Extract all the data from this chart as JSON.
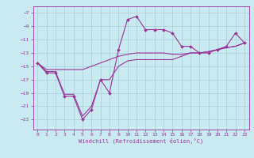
{
  "xlabel": "Windchill (Refroidissement éolien,°C)",
  "background_color": "#c8eaf0",
  "grid_color": "#aaccdd",
  "line_color": "#993399",
  "x_ticks": [
    0,
    1,
    2,
    3,
    4,
    5,
    6,
    7,
    8,
    9,
    10,
    11,
    12,
    13,
    14,
    15,
    16,
    17,
    18,
    19,
    20,
    21,
    22,
    23
  ],
  "y_ticks": [
    -7,
    -9,
    -11,
    -13,
    -15,
    -17,
    -19,
    -21,
    -23
  ],
  "ylim": [
    -24.5,
    -6.0
  ],
  "xlim": [
    -0.5,
    23.5
  ],
  "line1_x": [
    0,
    1,
    2,
    3,
    4,
    5,
    6,
    7,
    8,
    9,
    10,
    11,
    12,
    13,
    14,
    15,
    16,
    17,
    18,
    19,
    20,
    21,
    22,
    23
  ],
  "line1_y": [
    -14.5,
    -16.0,
    -16.0,
    -19.5,
    -19.5,
    -23.0,
    -21.5,
    -17.0,
    -19.0,
    -12.5,
    -8.0,
    -7.5,
    -9.5,
    -9.5,
    -9.5,
    -10.0,
    -12.0,
    -12.0,
    -13.0,
    -13.0,
    -12.5,
    -12.0,
    -10.0,
    -11.5
  ],
  "line2_x": [
    0,
    1,
    2,
    3,
    4,
    5,
    6,
    7,
    8,
    9,
    10,
    11,
    12,
    13,
    14,
    15,
    16,
    17,
    18,
    19,
    20,
    21,
    22,
    23
  ],
  "line2_y": [
    -14.5,
    -15.5,
    -15.5,
    -15.5,
    -15.5,
    -15.5,
    -15.0,
    -14.5,
    -14.0,
    -13.5,
    -13.2,
    -13.0,
    -13.0,
    -13.0,
    -13.0,
    -13.2,
    -13.2,
    -13.0,
    -13.0,
    -12.8,
    -12.5,
    -12.2,
    -12.0,
    -11.5
  ],
  "line3_x": [
    0,
    1,
    2,
    3,
    4,
    5,
    6,
    7,
    8,
    9,
    10,
    11,
    12,
    13,
    14,
    15,
    16,
    17,
    18,
    19,
    20,
    21,
    22,
    23
  ],
  "line3_y": [
    -14.5,
    -15.8,
    -15.8,
    -19.2,
    -19.2,
    -22.5,
    -21.0,
    -17.0,
    -17.0,
    -15.0,
    -14.2,
    -14.0,
    -14.0,
    -14.0,
    -14.0,
    -14.0,
    -13.5,
    -13.0,
    -13.0,
    -12.8,
    -12.5,
    -12.2,
    -12.0,
    -11.5
  ]
}
